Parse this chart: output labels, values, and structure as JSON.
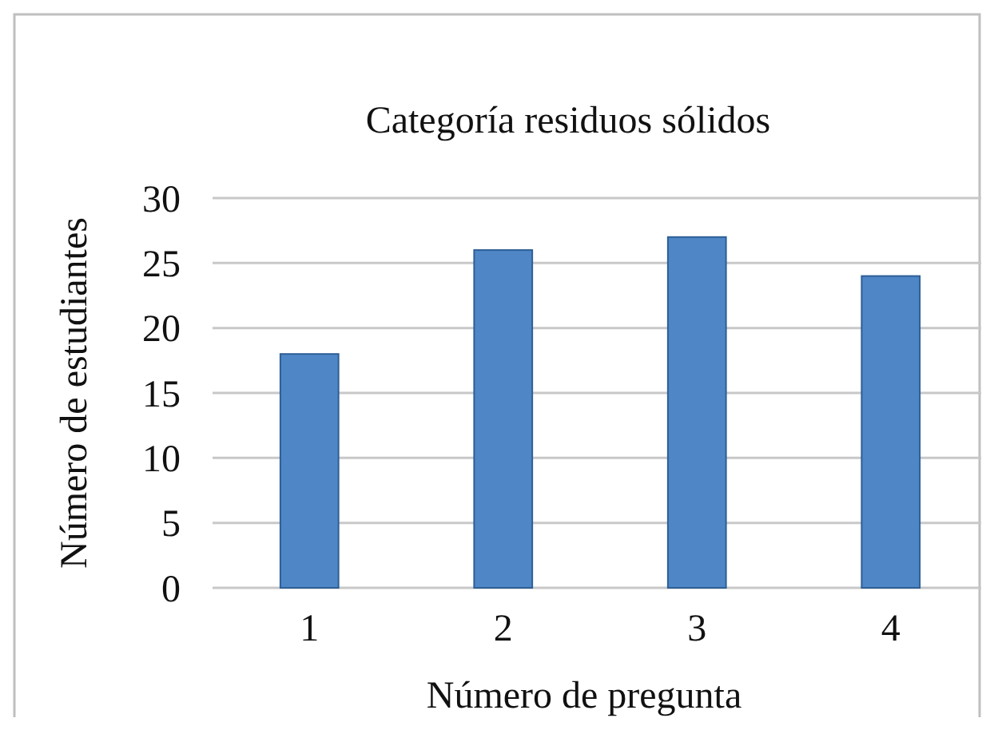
{
  "chart_data": {
    "type": "bar",
    "title": "Categoría residuos sólidos",
    "xlabel": "Número de pregunta",
    "ylabel": "Número de estudiantes",
    "categories": [
      "1",
      "2",
      "3",
      "4"
    ],
    "values": [
      18,
      26,
      27,
      24
    ],
    "color": "#4f86c6",
    "ylim": [
      0,
      30
    ],
    "yticks": [
      0,
      5,
      10,
      15,
      20,
      25,
      30
    ],
    "grid": "y"
  }
}
